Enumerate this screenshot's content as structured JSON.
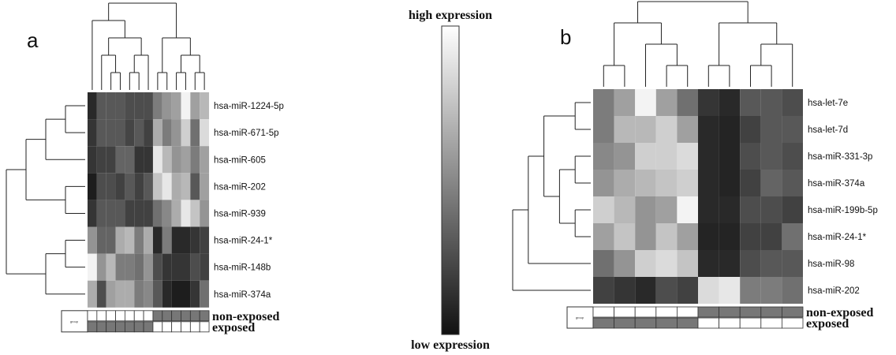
{
  "legend": {
    "high_label": "high expression",
    "low_label": "low expression",
    "colors": [
      "#111111",
      "#ffffff"
    ]
  },
  "chart_data": [
    {
      "type": "heatmap",
      "panel": "a",
      "rows": [
        "hsa-miR-1224-5p",
        "hsa-miR-671-5p",
        "hsa-miR-605",
        "hsa-miR-202",
        "hsa-miR-939",
        "hsa-miR-24-1*",
        "hsa-miR-148b",
        "hsa-miR-374a"
      ],
      "group_box_label": "group",
      "groups": [
        "non-exposed",
        "exposed"
      ],
      "column_groups": [
        "exposed",
        "exposed",
        "exposed",
        "exposed",
        "exposed",
        "exposed",
        "exposed",
        "non-exposed",
        "non-exposed",
        "non-exposed",
        "non-exposed",
        "non-exposed",
        "non-exposed"
      ],
      "values": [
        [
          0.1,
          0.3,
          0.3,
          0.3,
          0.25,
          0.25,
          0.25,
          0.45,
          0.55,
          0.6,
          0.95,
          0.6,
          0.7
        ],
        [
          0.15,
          0.3,
          0.3,
          0.3,
          0.22,
          0.3,
          0.2,
          0.65,
          0.45,
          0.55,
          0.8,
          0.4,
          0.85
        ],
        [
          0.15,
          0.2,
          0.2,
          0.35,
          0.35,
          0.15,
          0.15,
          0.9,
          0.7,
          0.55,
          0.6,
          0.45,
          0.6
        ],
        [
          0.05,
          0.25,
          0.25,
          0.2,
          0.3,
          0.2,
          0.3,
          0.75,
          0.9,
          0.65,
          0.7,
          0.3,
          0.6
        ],
        [
          0.15,
          0.3,
          0.3,
          0.3,
          0.2,
          0.2,
          0.2,
          0.4,
          0.5,
          0.65,
          0.9,
          0.75,
          0.55
        ],
        [
          0.55,
          0.35,
          0.35,
          0.65,
          0.7,
          0.45,
          0.65,
          0.1,
          0.45,
          0.1,
          0.1,
          0.15,
          0.2
        ],
        [
          0.95,
          0.55,
          0.7,
          0.45,
          0.45,
          0.4,
          0.55,
          0.25,
          0.15,
          0.15,
          0.15,
          0.25,
          0.2
        ],
        [
          0.65,
          0.25,
          0.6,
          0.65,
          0.65,
          0.45,
          0.5,
          0.3,
          0.1,
          0.05,
          0.05,
          0.15,
          0.4
        ]
      ]
    },
    {
      "type": "heatmap",
      "panel": "b",
      "rows": [
        "hsa-let-7e",
        "hsa-let-7d",
        "hsa-miR-331-3p",
        "hsa-miR-374a",
        "hsa-miR-199b-5p",
        "hsa-miR-24-1*",
        "hsa-miR-98",
        "hsa-miR-202"
      ],
      "group_box_label": "group",
      "groups": [
        "non-exposed",
        "exposed"
      ],
      "column_groups": [
        "exposed",
        "exposed",
        "exposed",
        "exposed",
        "exposed",
        "non-exposed",
        "non-exposed",
        "non-exposed",
        "non-exposed",
        "non-exposed"
      ],
      "values": [
        [
          0.45,
          0.6,
          0.95,
          0.6,
          0.4,
          0.15,
          0.1,
          0.3,
          0.3,
          0.25
        ],
        [
          0.45,
          0.7,
          0.7,
          0.8,
          0.6,
          0.1,
          0.08,
          0.2,
          0.3,
          0.3
        ],
        [
          0.5,
          0.55,
          0.8,
          0.8,
          0.85,
          0.1,
          0.08,
          0.25,
          0.3,
          0.25
        ],
        [
          0.55,
          0.65,
          0.7,
          0.75,
          0.8,
          0.1,
          0.08,
          0.2,
          0.35,
          0.3
        ],
        [
          0.8,
          0.7,
          0.55,
          0.6,
          0.95,
          0.1,
          0.1,
          0.25,
          0.25,
          0.2
        ],
        [
          0.6,
          0.75,
          0.55,
          0.75,
          0.6,
          0.08,
          0.08,
          0.2,
          0.2,
          0.4
        ],
        [
          0.4,
          0.55,
          0.8,
          0.85,
          0.75,
          0.1,
          0.1,
          0.25,
          0.3,
          0.3
        ],
        [
          0.2,
          0.15,
          0.1,
          0.25,
          0.2,
          0.85,
          0.9,
          0.45,
          0.45,
          0.4
        ]
      ]
    }
  ]
}
